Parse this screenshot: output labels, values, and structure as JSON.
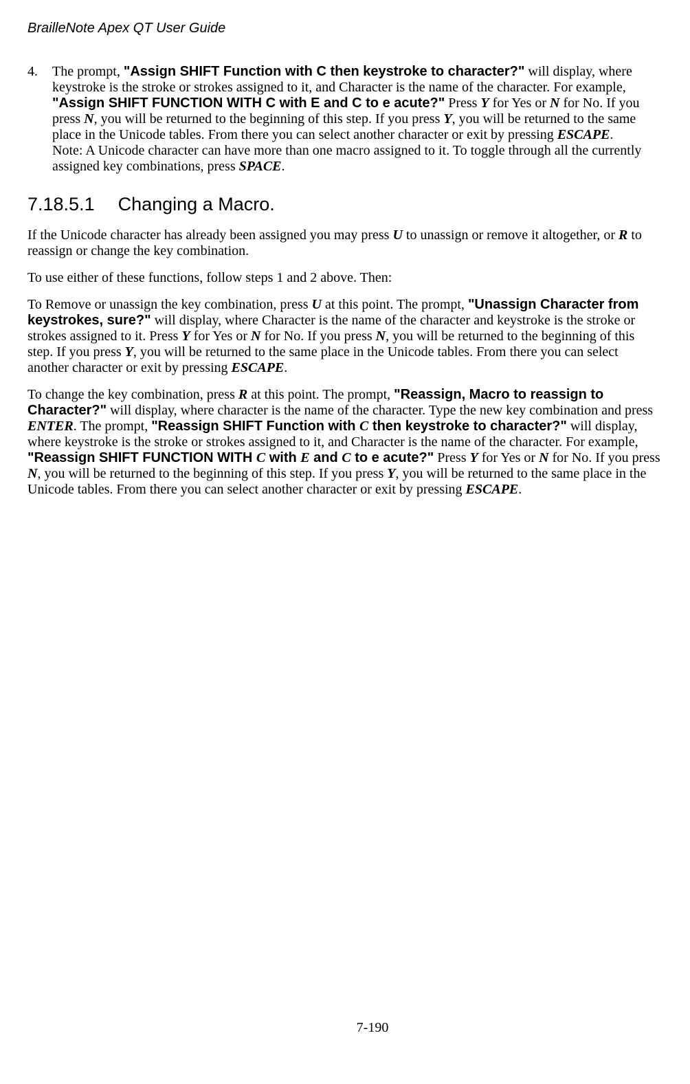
{
  "header": {
    "title": "BrailleNote Apex QT User Guide"
  },
  "listItem": {
    "number": "4.",
    "intro": "The prompt, ",
    "prompt1": "\"Assign SHIFT Function with C then keystroke to character?\"",
    "afterPrompt1": " will display, where keystroke is the stroke or strokes assigned to it, and Character is the name of the character. For example,",
    "prompt2": "\"Assign SHIFT FUNCTION WITH C with E and C to e acute?\"",
    "afterPrompt2a": " Press ",
    "keyY1": "Y",
    "afterPrompt2b": " for Yes or ",
    "keyN1": "N",
    "afterPrompt2c": " for No. If you press ",
    "keyN2": "N",
    "afterPrompt2d": ", you will be returned to the beginning of this step. If you press ",
    "keyY2": "Y",
    "afterPrompt2e": ", you will be returned to the same place in the Unicode tables. From there you can select another character or exit by pressing ",
    "keyEsc1": "ESCAPE",
    "afterPrompt2f": ".",
    "note1": "Note: A Unicode character can have more than one macro assigned to it. To toggle through all the currently assigned key combinations, press ",
    "keySpace": "SPACE",
    "note1end": "."
  },
  "section": {
    "number": "7.18.5.1",
    "title": "Changing a Macro."
  },
  "p1": {
    "a": "If the Unicode character has already been assigned you may press ",
    "keyU": "U",
    "b": " to unassign or remove it altogether, or ",
    "keyR": "R",
    "c": " to reassign or change the key combination."
  },
  "p2": "To use either of these functions, follow steps 1 and 2 above. Then:",
  "p3": {
    "a": "To Remove or unassign the key combination, press ",
    "keyU": "U",
    "b": " at this point. The prompt, ",
    "prompt": "\"Unassign Character from keystrokes, sure?\"",
    "c": " will display, where Character is the name of the character and keystroke is the stroke or strokes assigned to it. Press ",
    "keyY1": "Y",
    "d": " for Yes or ",
    "keyN1": "N",
    "e": " for No. If you press ",
    "keyN2": "N",
    "f": ", you will be returned to the beginning of this step. If you press ",
    "keyY2": "Y",
    "g": ", you will be returned to the same place in the Unicode tables. From there you can select another character or exit by pressing ",
    "keyEsc": "ESCAPE",
    "h": "."
  },
  "p4": {
    "a": "To change the key combination, press ",
    "keyR": "R",
    "b": " at this point. The prompt, ",
    "prompt1": "\"Reassign, Macro to reassign to Character?\"",
    "c": " will display, where character is the name of the character. Type the new key combination and press ",
    "keyEnter": "ENTER",
    "d": ". The prompt, ",
    "prompt2a": "\"Reassign SHIFT Function with ",
    "keyC1": "C",
    "prompt2b": " then keystroke to character?\"",
    "e": " will display, where keystroke is the stroke or strokes assigned to it, and Character is the name of the character. For example, ",
    "prompt3a": "\"Reassign SHIFT FUNCTION WITH ",
    "keyC2": "C",
    "prompt3b": " with ",
    "keyE": "E",
    "prompt3c": " and ",
    "keyC3": "C",
    "prompt3d": " to e acute?\"",
    "f": " Press ",
    "keyY1": "Y",
    "g": " for Yes or ",
    "keyN1": "N",
    "h": " for No. If you press ",
    "keyN2": "N",
    "i": ", you will be returned to the beginning of this step. If you press ",
    "keyY2": "Y",
    "j": ", you will be returned to the same place in the Unicode tables. From there you can select another character or exit by pressing ",
    "keyEsc": "ESCAPE",
    "k": "."
  },
  "footer": {
    "page": "7-190"
  }
}
